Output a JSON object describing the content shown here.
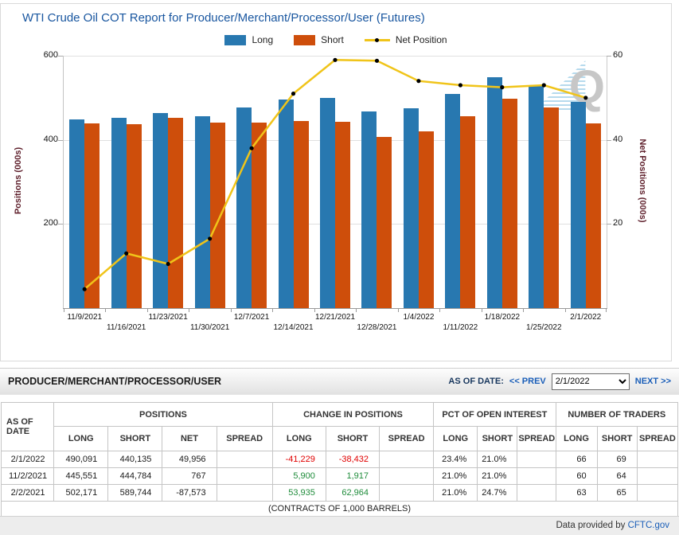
{
  "chart": {
    "title": "WTI Crude Oil COT Report for Producer/Merchant/Processor/User (Futures)",
    "legend": [
      {
        "label": "Long",
        "color": "#2878b0",
        "type": "bar"
      },
      {
        "label": "Short",
        "color": "#ce4e0b",
        "type": "bar"
      },
      {
        "label": "Net Position",
        "color": "#f0c419",
        "type": "line"
      }
    ],
    "left_axis": {
      "title": "Positions (000s)",
      "ticks": [
        600,
        400,
        200
      ]
    },
    "right_axis": {
      "title": "Net Positions (000s)",
      "ticks": [
        60,
        40,
        20
      ]
    },
    "watermark": "Q"
  },
  "chart_data": {
    "type": "bar",
    "categories": [
      "11/9/2021",
      "11/16/2021",
      "11/23/2021",
      "11/30/2021",
      "12/7/2021",
      "12/14/2021",
      "12/21/2021",
      "12/28/2021",
      "1/4/2022",
      "1/11/2022",
      "1/18/2022",
      "1/25/2022",
      "2/1/2022"
    ],
    "series": [
      {
        "name": "Long",
        "type": "bar",
        "axis": "left",
        "color": "#2878b0",
        "values": [
          448,
          452,
          464,
          456,
          477,
          495,
          500,
          467,
          476,
          509,
          548,
          530,
          490
        ]
      },
      {
        "name": "Short",
        "type": "bar",
        "axis": "left",
        "color": "#ce4e0b",
        "values": [
          440,
          438,
          453,
          441,
          441,
          444,
          442,
          407,
          421,
          456,
          497,
          477,
          440
        ]
      },
      {
        "name": "Net Position",
        "type": "line",
        "axis": "right",
        "color": "#f0c419",
        "values": [
          4.5,
          13,
          10.5,
          16.5,
          38,
          51,
          59,
          58.8,
          54,
          53,
          52.5,
          53,
          50
        ]
      }
    ],
    "title": "WTI Crude Oil COT Report for Producer/Merchant/Processor/User (Futures)",
    "xlabel": "",
    "left_ylabel": "Positions (000s)",
    "right_ylabel": "Net Positions (000s)",
    "left_ylim": [
      0,
      600
    ],
    "right_ylim": [
      0,
      60
    ],
    "grid": true,
    "legend_position": "top-center"
  },
  "section": {
    "title": "PRODUCER/MERCHANT/PROCESSOR/USER",
    "as_of_label": "AS OF DATE:",
    "prev_label": "<< PREV",
    "next_label": "NEXT >>",
    "selected_date": "2/1/2022"
  },
  "table": {
    "corner_header": "AS OF DATE",
    "groups": [
      "POSITIONS",
      "CHANGE IN POSITIONS",
      "PCT OF OPEN INTEREST",
      "NUMBER OF TRADERS"
    ],
    "columns": [
      "LONG",
      "SHORT",
      "NET",
      "SPREAD",
      "LONG",
      "SHORT",
      "SPREAD",
      "LONG",
      "SHORT",
      "SPREAD",
      "LONG",
      "SHORT",
      "SPREAD"
    ],
    "rows": [
      {
        "date": "2/1/2022",
        "pos_long": "490,091",
        "pos_short": "440,135",
        "pos_net": "49,956",
        "pos_spread": "",
        "chg_long": "-41,229",
        "chg_short": "-38,432",
        "chg_spread": "",
        "pct_long": "23.4%",
        "pct_short": "21.0%",
        "pct_spread": "",
        "num_long": "66",
        "num_short": "69",
        "num_spread": ""
      },
      {
        "date": "11/2/2021",
        "pos_long": "445,551",
        "pos_short": "444,784",
        "pos_net": "767",
        "pos_spread": "",
        "chg_long": "5,900",
        "chg_short": "1,917",
        "chg_spread": "",
        "pct_long": "21.0%",
        "pct_short": "21.0%",
        "pct_spread": "",
        "num_long": "60",
        "num_short": "64",
        "num_spread": ""
      },
      {
        "date": "2/2/2021",
        "pos_long": "502,171",
        "pos_short": "589,744",
        "pos_net": "-87,573",
        "pos_spread": "",
        "chg_long": "53,935",
        "chg_short": "62,964",
        "chg_spread": "",
        "pct_long": "21.0%",
        "pct_short": "24.7%",
        "pct_spread": "",
        "num_long": "63",
        "num_short": "65",
        "num_spread": ""
      }
    ],
    "footnote": "(CONTRACTS OF 1,000 BARRELS)"
  },
  "footer": {
    "text": "Data provided by ",
    "link": "CFTC.gov"
  },
  "colors": {
    "negative": "#e00000",
    "positive": "#1f8c3b",
    "title": "#1a57a0",
    "axis_title": "#5e1f2b"
  }
}
